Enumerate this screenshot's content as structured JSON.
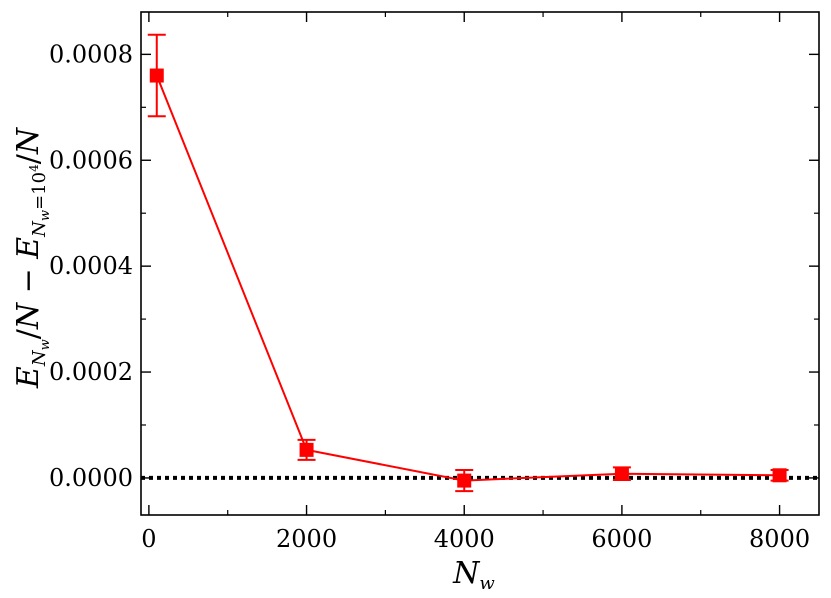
{
  "chart_data": {
    "type": "line",
    "title": "",
    "xlabel": "N_w",
    "ylabel": "E_{N_w}/N − E_{N_w=10^4}/N",
    "xlim": [
      -100,
      8500
    ],
    "ylim": [
      -7e-05,
      0.00088
    ],
    "x_ticks": [
      0,
      2000,
      4000,
      6000,
      8000
    ],
    "x_tick_labels": [
      "0",
      "2000",
      "4000",
      "6000",
      "8000"
    ],
    "y_ticks": [
      0,
      0.0002,
      0.0004,
      0.0006,
      0.0008
    ],
    "y_tick_labels": [
      "0.0000",
      "0.0002",
      "0.0004",
      "0.0006",
      "0.0008"
    ],
    "grid": false,
    "reference_line": {
      "y": 0,
      "style": "dotted",
      "color": "#000000"
    },
    "series": [
      {
        "color": "#ff0000",
        "marker": "square",
        "x": [
          100,
          2000,
          4000,
          6000,
          8000
        ],
        "y": [
          0.00076,
          5.3e-05,
          -5e-06,
          8e-06,
          5e-06
        ],
        "yerr": [
          7.7e-05,
          1.9e-05,
          2e-05,
          1.2e-05,
          1e-05
        ]
      }
    ]
  }
}
